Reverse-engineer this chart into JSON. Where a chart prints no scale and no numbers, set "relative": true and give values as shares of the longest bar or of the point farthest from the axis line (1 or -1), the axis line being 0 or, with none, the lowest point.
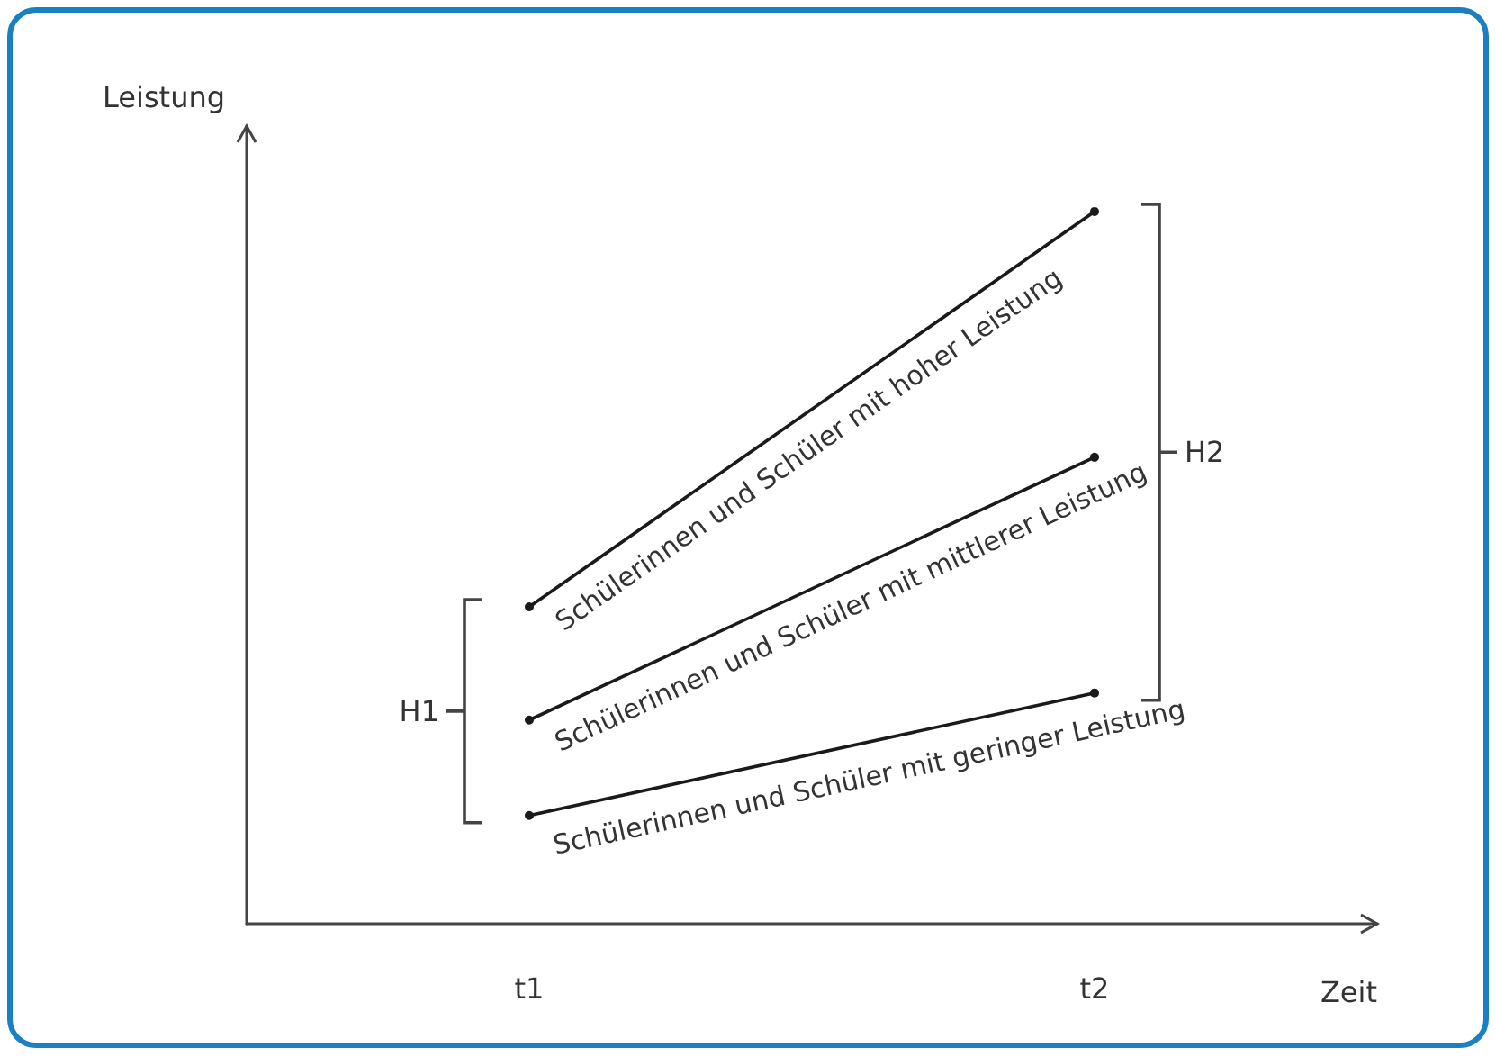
{
  "chart_data": {
    "type": "line",
    "relative": true,
    "xlabel": "Zeit",
    "ylabel": "Leistung",
    "categories": [
      "t1",
      "t2"
    ],
    "marker": "circle",
    "line_style": "solid",
    "grid": false,
    "legend": false,
    "series": [
      {
        "name": "Schülerinnen und Schüler mit hoher Leistung",
        "color": "#1a1a1a",
        "values": [
          0.445,
          1
        ]
      },
      {
        "name": "Schülerinnen und Schüler mit mittlerer Leistung",
        "color": "#1a1a1a",
        "values": [
          0.286,
          0.655
        ]
      },
      {
        "name": "Schülerinnen und Schüler mit geringer Leistung",
        "color": "#1a1a1a",
        "values": [
          0.152,
          0.324
        ]
      }
    ],
    "annotations": [
      "H1",
      "H2"
    ]
  }
}
